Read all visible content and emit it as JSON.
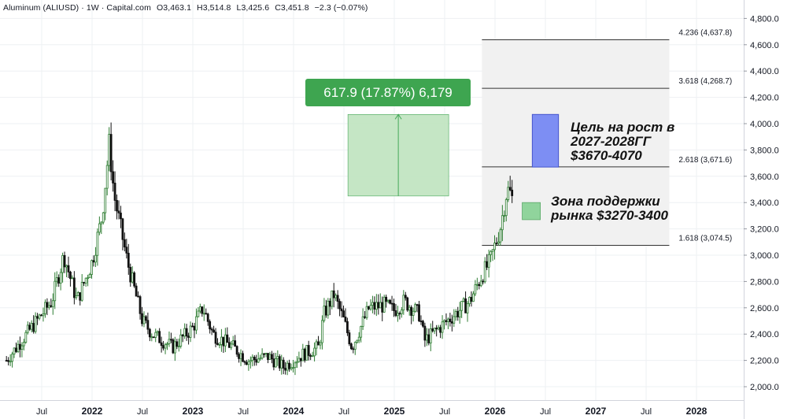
{
  "header": {
    "symbol": "Aluminum (ALIUSD) · 1W · Capital.com",
    "open": "O3,463.1",
    "high": "H3,514.8",
    "low": "L3,425.6",
    "close": "C3,451.8",
    "change": "−2.3 (−0.07%)"
  },
  "chart_data": {
    "type": "candlestick",
    "ylim": [
      1950,
      4950
    ],
    "y_ticks": [
      2000,
      2200,
      2400,
      2600,
      2800,
      3000,
      3200,
      3400,
      3600,
      3800,
      4000,
      4200,
      4400,
      4600,
      4800
    ],
    "y_tick_labels": [
      "2,000.0",
      "2,200.0",
      "2,400.0",
      "2,600.0",
      "2,800.0",
      "3,000.0",
      "3,200.0",
      "3,400.0",
      "3,600.0",
      "3,800.0",
      "4,000.0",
      "4,200.0",
      "4,400.0",
      "4,600.0",
      "4,800.0"
    ],
    "x_range": [
      2021.15,
      2028.55
    ],
    "x_ticks": [
      2021.5,
      2022,
      2022.5,
      2023,
      2023.5,
      2024,
      2024.5,
      2025,
      2025.5,
      2026,
      2026.5,
      2027,
      2027.5,
      2028
    ],
    "x_tick_labels": [
      "Jul",
      "2022",
      "Jul",
      "2023",
      "Jul",
      "2024",
      "Jul",
      "2025",
      "Jul",
      "2026",
      "Jul",
      "2027",
      "Jul",
      "2028"
    ],
    "price_path": [
      [
        2021.15,
        2200
      ],
      [
        2021.4,
        2450
      ],
      [
        2021.6,
        2650
      ],
      [
        2021.72,
        3000
      ],
      [
        2021.85,
        2650
      ],
      [
        2022.0,
        2950
      ],
      [
        2022.1,
        3300
      ],
      [
        2022.17,
        3850
      ],
      [
        2022.22,
        3450
      ],
      [
        2022.35,
        2950
      ],
      [
        2022.5,
        2500
      ],
      [
        2022.6,
        2400
      ],
      [
        2022.8,
        2300
      ],
      [
        2023.0,
        2450
      ],
      [
        2023.1,
        2600
      ],
      [
        2023.2,
        2400
      ],
      [
        2023.4,
        2300
      ],
      [
        2023.55,
        2200
      ],
      [
        2023.75,
        2230
      ],
      [
        2023.9,
        2150
      ],
      [
        2024.0,
        2200
      ],
      [
        2024.1,
        2250
      ],
      [
        2024.25,
        2300
      ],
      [
        2024.3,
        2550
      ],
      [
        2024.4,
        2700
      ],
      [
        2024.5,
        2500
      ],
      [
        2024.58,
        2300
      ],
      [
        2024.75,
        2600
      ],
      [
        2024.9,
        2620
      ],
      [
        2025.0,
        2580
      ],
      [
        2025.1,
        2650
      ],
      [
        2025.25,
        2550
      ],
      [
        2025.3,
        2350
      ],
      [
        2025.45,
        2450
      ],
      [
        2025.6,
        2550
      ],
      [
        2025.75,
        2650
      ],
      [
        2025.87,
        2850
      ],
      [
        2025.95,
        2950
      ],
      [
        2026.05,
        3200
      ],
      [
        2026.12,
        3500
      ],
      [
        2026.17,
        3452
      ]
    ],
    "fib_levels": [
      {
        "label": "1.618 (3,074.5)",
        "value": 3074.5
      },
      {
        "label": "2.618 (3,671.6)",
        "value": 3671.6
      },
      {
        "label": "3.618 (4,268.7)",
        "value": 4268.7
      },
      {
        "label": "4.236 (4,637.8)",
        "value": 4637.8
      }
    ],
    "fib_range_x": [
      2025.87,
      2027.73
    ],
    "measure_box": {
      "x": [
        2024.54,
        2025.54
      ],
      "y": [
        3450,
        4070
      ],
      "label": "617.9 (17.87%) 6,179"
    },
    "target_box": {
      "x": [
        2026.37,
        2026.63
      ],
      "y": [
        3670,
        4070
      ]
    },
    "support_box": {
      "x": [
        2026.27,
        2026.45
      ],
      "y": [
        3270,
        3400
      ]
    }
  },
  "annotations": {
    "target": [
      "Цель на рост в",
      "2027-2028ГГ",
      "$3670-4070"
    ],
    "support": [
      "Зона поддержки",
      "рынка $3270-3400"
    ]
  },
  "colors": {
    "up": "#2e7d32",
    "down": "#111111",
    "up_fill": "#ffffff",
    "fib_line": "#333333",
    "fib_zone": "#f1f1f1",
    "measure_fill": "#bfe3bf",
    "measure_line": "#46a85a",
    "target_fill": "#7d8ef3",
    "target_stroke": "#4555cc",
    "support_fill": "#90d49c",
    "grid": "#eef0f3",
    "axis_text": "#131722"
  }
}
